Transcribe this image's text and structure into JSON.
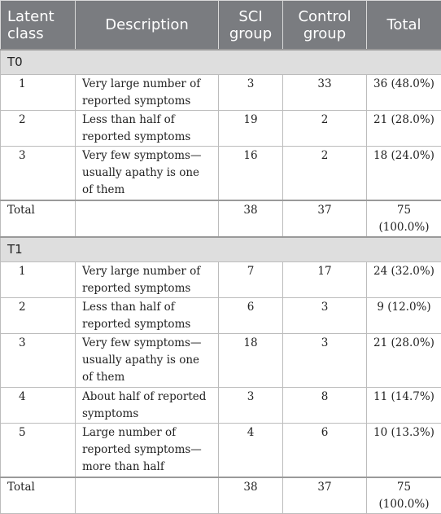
{
  "header": {
    "latent_class": "Latent class",
    "description": "Description",
    "sci_group": "SCI group",
    "control_group": "Control group",
    "total": "Total"
  },
  "sections": [
    {
      "label": "T0",
      "rows": [
        {
          "cls": "1",
          "desc": "Very large number of reported symptoms",
          "sci": "3",
          "control": "33",
          "total": "36 (48.0%)"
        },
        {
          "cls": "2",
          "desc": "Less than half of reported symptoms",
          "sci": "19",
          "control": "2",
          "total": "21 (28.0%)"
        },
        {
          "cls": "3",
          "desc": "Very few symptoms—usually apathy is one of them",
          "sci": "16",
          "control": "2",
          "total": "18 (24.0%)"
        }
      ],
      "total_row": {
        "label": "Total",
        "desc": "",
        "sci": "38",
        "control": "37",
        "total": "75 (100.0%)"
      }
    },
    {
      "label": "T1",
      "rows": [
        {
          "cls": "1",
          "desc": "Very large number of reported symptoms",
          "sci": "7",
          "control": "17",
          "total": "24 (32.0%)"
        },
        {
          "cls": "2",
          "desc": "Less than half of reported symptoms",
          "sci": "6",
          "control": "3",
          "total": "9 (12.0%)"
        },
        {
          "cls": "3",
          "desc": "Very few symptoms—usually apathy is one of them",
          "sci": "18",
          "control": "3",
          "total": "21 (28.0%)"
        },
        {
          "cls": "4",
          "desc": "About half of reported symptoms",
          "sci": "3",
          "control": "8",
          "total": "11 (14.7%)"
        },
        {
          "cls": "5",
          "desc": "Large number of reported symptoms—more than half",
          "sci": "4",
          "control": "6",
          "total": "10 (13.3%)"
        }
      ],
      "total_row": {
        "label": "Total",
        "desc": "",
        "sci": "38",
        "control": "37",
        "total": "75 (100.0%)"
      }
    }
  ],
  "colors": {
    "header_bg": "#7a7c80",
    "section_bg": "#dedede"
  }
}
